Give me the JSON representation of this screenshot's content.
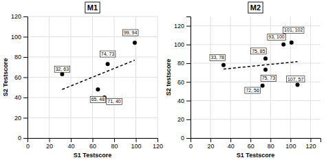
{
  "chart_data": [
    {
      "type": "scatter",
      "title": "M1",
      "xlabel": "S1 Testscore",
      "ylabel": "S2 Testscore",
      "xlim": [
        0,
        120
      ],
      "ylim": [
        0,
        120
      ],
      "xticks": [
        0,
        20,
        40,
        60,
        80,
        100,
        120
      ],
      "yticks": [
        0,
        20,
        40,
        60,
        80,
        100,
        120
      ],
      "grid": true,
      "series": [
        {
          "type": "scatter",
          "color": "#000000",
          "x": [
            32,
            65,
            71,
            74,
            99
          ],
          "values": [
            63,
            48,
            40,
            73,
            94
          ]
        },
        {
          "type": "line",
          "line_style": "dashed",
          "color": "#000000",
          "x": [
            32,
            99
          ],
          "values": [
            47.9908,
            76.8807
          ]
        }
      ],
      "annotations": [
        {
          "text": "32, 63",
          "x": 32,
          "y": 68
        },
        {
          "text": "65, 48",
          "x": 65,
          "y": 38
        },
        {
          "text": "71, 40",
          "x": 80,
          "y": 36
        },
        {
          "text": "74, 73",
          "x": 74,
          "y": 83
        },
        {
          "text": "99, 94",
          "x": 95,
          "y": 104
        }
      ]
    },
    {
      "type": "scatter",
      "title": "M2",
      "xlabel": "S1 Testscore",
      "ylabel": "S2 testscore",
      "xlim": [
        0,
        130
      ],
      "ylim": [
        0,
        130
      ],
      "xticks": [
        0,
        20,
        40,
        60,
        80,
        100,
        120
      ],
      "yticks": [
        0,
        20,
        40,
        60,
        80,
        100,
        120
      ],
      "grid": true,
      "series": [
        {
          "type": "scatter",
          "color": "#000000",
          "x": [
            33,
            72,
            75,
            75,
            93,
            101,
            107
          ],
          "values": [
            78,
            56,
            85,
            73,
            100,
            102,
            57
          ]
        },
        {
          "type": "line",
          "line_style": "dashed",
          "color": "#000000",
          "x": [
            33,
            107
          ],
          "values": [
            73.743,
            81.6664
          ]
        }
      ],
      "annotations": [
        {
          "text": "33, 78",
          "x": 27,
          "y": 86
        },
        {
          "text": "72, 56",
          "x": 62,
          "y": 51
        },
        {
          "text": "75, 85",
          "x": 68,
          "y": 93
        },
        {
          "text": "75, 73",
          "x": 78,
          "y": 64
        },
        {
          "text": "93, 100",
          "x": 86,
          "y": 108
        },
        {
          "text": "101, 102",
          "x": 103,
          "y": 112
        },
        {
          "text": "107, 57",
          "x": 105,
          "y": 63
        }
      ]
    }
  ]
}
